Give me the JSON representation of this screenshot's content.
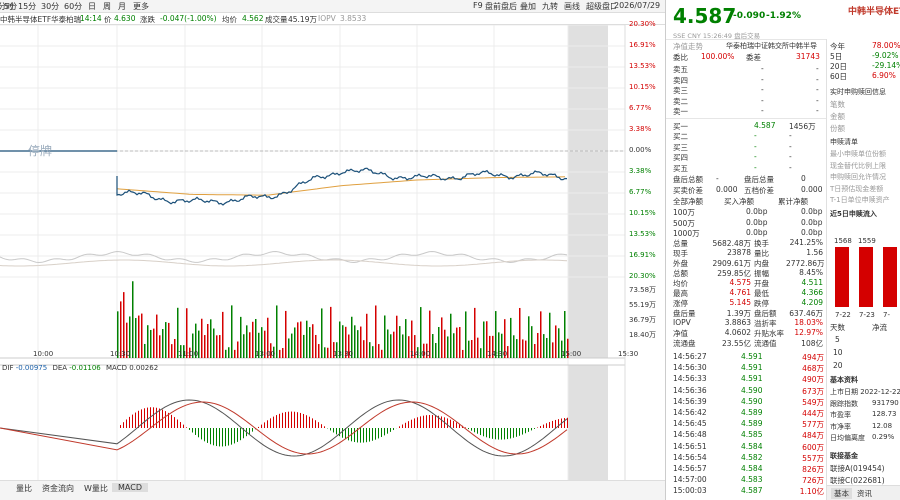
{
  "toolbar": {
    "items": [
      "分时",
      "5分",
      "15分",
      "30分",
      "60分",
      "日",
      "周",
      "月",
      "更多"
    ],
    "right_items": [
      "F9",
      "盘前盘后",
      "叠加",
      "九转",
      "画线",
      "超级盘口"
    ],
    "date": "2026/07/29"
  },
  "info": {
    "name": "中韩半导体ETF华泰柏瑞",
    "time": "14:14",
    "price_label": "价",
    "price": "4.630",
    "chg_label": "涨跌",
    "chg": "-0.047(-1.00%)",
    "avg_label": "均价",
    "avg": "4.562",
    "vol_label": "成交量",
    "vol": "45.19万",
    "iopv_label": "IOPV",
    "iopv": "3.8533"
  },
  "price_axis": {
    "right": [
      "20.30%",
      "16.91%",
      "13.53%",
      "10.15%",
      "6.77%",
      "3.38%",
      "0.00%",
      "3.38%",
      "6.77%",
      "10.15%",
      "13.53%",
      "16.91%",
      "20.30%"
    ]
  },
  "vol_axis": [
    "73.58万",
    "55.19万",
    "36.79万",
    "18.40万"
  ],
  "time_axis": [
    "10:00",
    "10:30",
    "11:00",
    "13:00",
    "13:30",
    "14:00",
    "14:30",
    "15:00",
    "15:30"
  ],
  "halt_label": "停牌",
  "macd": {
    "dif_label": "DIF",
    "dif": "-0.00975",
    "dea_label": "DEA",
    "dea": "-0.01106",
    "macd_label": "MACD",
    "macd": "0.00262"
  },
  "bottom_tabs": [
    "量比",
    "资金流向",
    "W量比",
    "MACD"
  ],
  "quote": {
    "price": "4.587",
    "chg": "-0.090",
    "pct": "-1.92%",
    "title": "中韩半导体ETF",
    "market": "SSE CNY 15:26:49 盘后交易",
    "nav_label": "净值走势",
    "issuer": "华泰柏瑞中证韩交所中韩半导",
    "weibi_label": "委比",
    "weibi": "100.00%",
    "weicha_label": "委差",
    "weicha": "31743"
  },
  "sells": [
    {
      "l": "卖五",
      "p": "-",
      "v": "-"
    },
    {
      "l": "卖四",
      "p": "-",
      "v": "-"
    },
    {
      "l": "卖三",
      "p": "-",
      "v": "-"
    },
    {
      "l": "卖二",
      "p": "-",
      "v": "-"
    },
    {
      "l": "卖一",
      "p": "-",
      "v": "-"
    }
  ],
  "buys": [
    {
      "l": "买一",
      "p": "4.587",
      "v": "1456万"
    },
    {
      "l": "买二",
      "p": "-",
      "v": "-"
    },
    {
      "l": "买三",
      "p": "-",
      "v": "-"
    },
    {
      "l": "买四",
      "p": "-",
      "v": "-"
    },
    {
      "l": "买五",
      "p": "-",
      "v": "-"
    }
  ],
  "after": [
    {
      "l": "盘后总额",
      "a": "-",
      "b": "盘后总量",
      "c": "0"
    },
    {
      "l": "买卖价差",
      "a": "0.000",
      "b": "五档价差",
      "c": "0.000"
    }
  ],
  "netflow": {
    "h1": "全部净额",
    "h2": "买入净额",
    "h3": "累计净额",
    "rows": [
      {
        "l": "100万",
        "a": "0.0bp",
        "b": "0.0bp"
      },
      {
        "l": "500万",
        "a": "0.0bp",
        "b": "0.0bp"
      },
      {
        "l": "1000万",
        "a": "0.0bp",
        "b": "0.0bp"
      }
    ]
  },
  "stats": [
    {
      "l1": "总量",
      "v1": "5682.48万",
      "l2": "换手",
      "v2": "241.25%"
    },
    {
      "l1": "现手",
      "v1": "23878",
      "l2": "量比",
      "v2": "1.56"
    },
    {
      "l1": "外盘",
      "v1": "2909.61万",
      "l2": "内盘",
      "v2": "2772.86万"
    },
    {
      "l1": "总额",
      "v1": "259.85亿",
      "l2": "振幅",
      "v2": "8.45%"
    },
    {
      "l1": "均价",
      "v1": "4.575",
      "l2": "开盘",
      "v2": "4.511"
    },
    {
      "l1": "最高",
      "v1": "4.761",
      "l2": "最低",
      "v2": "4.366"
    },
    {
      "l1": "涨停",
      "v1": "5.145",
      "l2": "跌停",
      "v2": "4.209"
    },
    {
      "l1": "盘后量",
      "v1": "1.39万",
      "l2": "盘后额",
      "v2": "637.46万"
    },
    {
      "l1": "IOPV",
      "v1": "3.8863",
      "l2": "溢折率",
      "v2": "18.03%"
    },
    {
      "l1": "净值",
      "v1": "4.0602",
      "l2": "升贴水率",
      "v2": "12.97%"
    },
    {
      "l1": "流通盘",
      "v1": "23.55亿",
      "l2": "流通值",
      "v2": "108亿"
    }
  ],
  "ticks": [
    {
      "t": "14:56:27",
      "p": "4.591",
      "v": "494万"
    },
    {
      "t": "14:56:30",
      "p": "4.591",
      "v": "468万"
    },
    {
      "t": "14:56:33",
      "p": "4.591",
      "v": "490万"
    },
    {
      "t": "14:56:36",
      "p": "4.590",
      "v": "673万"
    },
    {
      "t": "14:56:39",
      "p": "4.590",
      "v": "549万"
    },
    {
      "t": "14:56:42",
      "p": "4.589",
      "v": "444万"
    },
    {
      "t": "14:56:45",
      "p": "4.589",
      "v": "577万"
    },
    {
      "t": "14:56:48",
      "p": "4.585",
      "v": "484万"
    },
    {
      "t": "14:56:51",
      "p": "4.584",
      "v": "600万"
    },
    {
      "t": "14:56:54",
      "p": "4.582",
      "v": "557万"
    },
    {
      "t": "14:56:57",
      "p": "4.584",
      "v": "826万"
    },
    {
      "t": "14:57:00",
      "p": "4.583",
      "v": "726万"
    },
    {
      "t": "15:00:03",
      "p": "4.587",
      "v": "1.10亿"
    }
  ],
  "side": {
    "periods": [
      {
        "l": "今年",
        "v": "78.00%"
      },
      {
        "l": "5日",
        "v": "-9.02%"
      },
      {
        "l": "20日",
        "v": "-29.14%"
      },
      {
        "l": "60日",
        "v": "6.90%"
      }
    ],
    "sub_title": "实时申购赎回信息",
    "sub_items": [
      "笔数",
      "金额",
      "份额"
    ],
    "list_title": "申赎清单",
    "list_items": [
      "最小申赎单位份额",
      "现金替代比例上限",
      "申购赎回允许情况",
      "T日预估现金差额",
      "T-1日单位申赎资产"
    ],
    "flow_title": "近5日申赎流入",
    "bars": [
      {
        "v": "1568",
        "d": "7-22"
      },
      {
        "v": "1559",
        "d": "7-23"
      },
      {
        "v": "",
        "d": "7-"
      }
    ],
    "days_label": "天数",
    "days": [
      "5",
      "10",
      "20"
    ],
    "net_label": "净流",
    "basic_title": "基本资料",
    "basic": [
      "上市日期 2022-12-22",
      "跟踪指数",
      "市盈率",
      "市净率",
      "日均偏离度"
    ],
    "basic_vals": [
      "",
      "931790",
      "128.73",
      "12.08",
      "0.29%"
    ],
    "fund_title": "联接基金",
    "funds": [
      "联接A(019454)",
      "联接C(022681)"
    ],
    "tabs": [
      "基本",
      "资讯"
    ]
  },
  "chart_data": {
    "type": "line",
    "title": "",
    "xlabel": "",
    "ylabel": "",
    "x": [
      "10:30",
      "11:00",
      "13:00",
      "13:30",
      "14:00",
      "14:30",
      "15:00"
    ],
    "series": [
      {
        "name": "",
        "values": [
          -2.0,
          -3.3,
          -2.7,
          0.8,
          -0.3,
          0.2,
          0.0
        ]
      },
      {
        "name": "",
        "values": [
          -1.6,
          -2.3,
          -2.4,
          -1.2,
          -0.5,
          -0.2,
          -0.1
        ]
      }
    ]
  }
}
